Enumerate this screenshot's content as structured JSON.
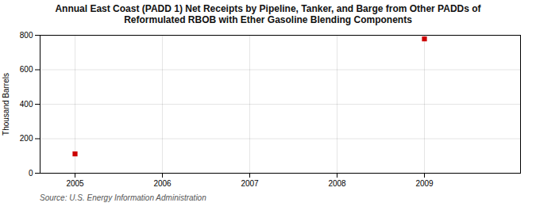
{
  "chart_data": {
    "type": "scatter",
    "title": "Annual East Coast (PADD 1) Net Receipts by Pipeline, Tanker, and Barge from Other PADDs of\nReformulated RBOB with Ether Gasoline Blending Components",
    "ylabel": "Thousand Barrels",
    "source": "Source: U.S. Energy Information Administration",
    "x": [
      2005,
      2009
    ],
    "values": [
      112,
      779
    ],
    "color": "#cc0000",
    "marker": "square",
    "xlim": [
      2004.6,
      2010.1
    ],
    "ylim": [
      0,
      800
    ],
    "xticks": [
      2005,
      2006,
      2007,
      2008,
      2009
    ],
    "yticks": [
      0,
      200,
      400,
      600,
      800
    ],
    "grid": true
  }
}
